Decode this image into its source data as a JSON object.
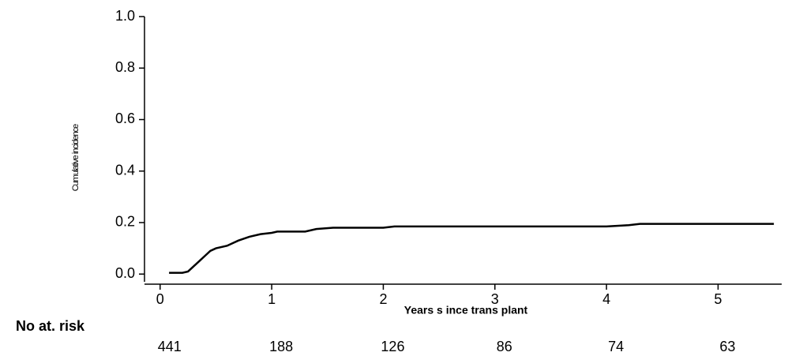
{
  "chart_data": {
    "type": "line",
    "y_label": "Cumulative incidence",
    "x_label": "Years s ince trans plant",
    "x": [
      0.08,
      0.2,
      0.25,
      0.3,
      0.35,
      0.4,
      0.45,
      0.5,
      0.6,
      0.7,
      0.8,
      0.9,
      1.0,
      1.05,
      1.3,
      1.4,
      1.55,
      2.0,
      2.1,
      4.0,
      4.2,
      4.3,
      5.5
    ],
    "series": [
      {
        "color": "#000000",
        "values": [
          0.005,
          0.005,
          0.01,
          0.03,
          0.05,
          0.07,
          0.09,
          0.1,
          0.11,
          0.13,
          0.145,
          0.155,
          0.16,
          0.165,
          0.165,
          0.175,
          0.18,
          0.18,
          0.185,
          0.185,
          0.19,
          0.195,
          0.195
        ]
      }
    ],
    "xlim": [
      -0.14,
      5.57
    ],
    "xticks": [
      0,
      1,
      2,
      3,
      4,
      5
    ],
    "ylim": [
      -0.03,
      1.0
    ],
    "yticks": [
      {
        "value": 0,
        "label": "0.0"
      },
      {
        "value": 0.2,
        "label": "0.2"
      },
      {
        "value": 0.4,
        "label": "0.4"
      },
      {
        "value": 0.6,
        "label": "0.6"
      },
      {
        "value": 0.8,
        "label": "0.8"
      },
      {
        "value": 1.0,
        "label": "1.0"
      }
    ],
    "risk_table": {
      "label": "No at. risk",
      "x": [
        0,
        1,
        2,
        3,
        4,
        5
      ],
      "values": [
        "441",
        "188",
        "126",
        "86",
        "74",
        "63"
      ]
    }
  }
}
